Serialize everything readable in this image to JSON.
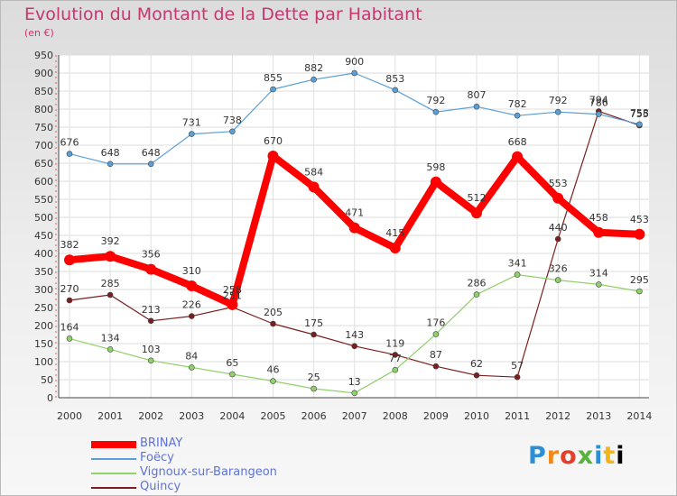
{
  "header": {
    "title": "Evolution du Montant de la Dette par Habitant",
    "unit": "(en €)"
  },
  "logo": {
    "text": "Proxiti"
  },
  "chart_data": {
    "type": "line",
    "title": "Evolution du Montant de la Dette par Habitant",
    "ylabel": "(en €)",
    "xlabel": "",
    "ylim": [
      0,
      950
    ],
    "y_ticks": [
      0,
      50,
      100,
      150,
      200,
      250,
      300,
      350,
      400,
      450,
      500,
      550,
      600,
      650,
      700,
      750,
      800,
      850,
      900,
      950
    ],
    "x": [
      "2000",
      "2001",
      "2002",
      "2003",
      "2004",
      "2005",
      "2006",
      "2007",
      "2008",
      "2009",
      "2010",
      "2011",
      "2012",
      "2013",
      "2014"
    ],
    "grid": true,
    "legend": "bottom-left",
    "series": [
      {
        "name": "BRINAY",
        "color": "#ff0000",
        "values": [
          382,
          392,
          356,
          310,
          258,
          670,
          584,
          471,
          415,
          598,
          512,
          668,
          553,
          458,
          453
        ]
      },
      {
        "name": "Foëcy",
        "color": "#5a9fd6",
        "values": [
          676,
          648,
          648,
          731,
          738,
          855,
          882,
          900,
          853,
          792,
          807,
          782,
          792,
          786,
          758
        ]
      },
      {
        "name": "Vignoux-sur-Barangeon",
        "color": "#8fd16a",
        "values": [
          164,
          134,
          103,
          84,
          65,
          46,
          25,
          13,
          77,
          176,
          286,
          341,
          326,
          314,
          295
        ]
      },
      {
        "name": "Quincy",
        "color": "#7a1f1f",
        "values": [
          270,
          285,
          213,
          226,
          251,
          205,
          175,
          143,
          119,
          87,
          62,
          57,
          440,
          794,
          755
        ]
      }
    ]
  }
}
